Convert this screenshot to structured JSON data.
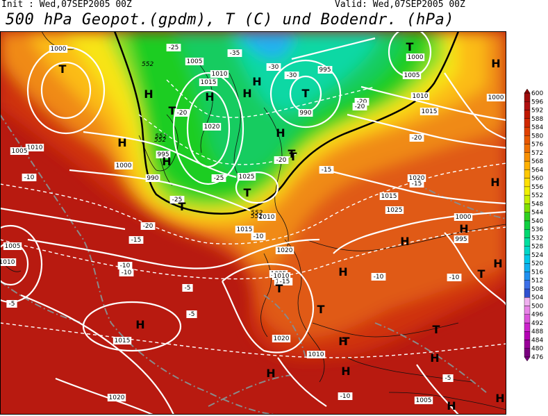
{
  "header": {
    "init_label": "Init : Wed,07SEP2005 00Z",
    "valid_label": "Valid: Wed,07SEP2005 00Z",
    "title": "500 hPa Geopot.(gpdm), T (C) und Bodendr. (hPa)"
  },
  "colorbar": {
    "levels": [
      476,
      480,
      484,
      488,
      492,
      496,
      500,
      504,
      508,
      512,
      516,
      520,
      524,
      528,
      532,
      536,
      540,
      544,
      548,
      552,
      556,
      560,
      564,
      568,
      572,
      576,
      580,
      584,
      588,
      592,
      596,
      600
    ],
    "colors": [
      "#7a0080",
      "#9a009a",
      "#b400b4",
      "#cc22cc",
      "#dd55dd",
      "#e884e8",
      "#f0b0f0",
      "#3050d0",
      "#3c70e8",
      "#2090f0",
      "#10b0f0",
      "#00c8e8",
      "#00d8c8",
      "#00e0a0",
      "#00d870",
      "#10d040",
      "#30d020",
      "#80e000",
      "#c8f000",
      "#f0f000",
      "#ffe000",
      "#ffc800",
      "#ffb000",
      "#f89000",
      "#f07000",
      "#e85800",
      "#e04000",
      "#d02800",
      "#c01800",
      "#b01010",
      "#a00c0c",
      "#880808"
    ]
  },
  "isobar_labels": [
    "1000",
    "1005",
    "1010",
    "1015",
    "1020",
    "1025",
    "990",
    "995",
    "1000",
    "1005",
    "1010",
    "1015",
    "1020",
    "1025",
    "1020",
    "1015",
    "1010",
    "1005",
    "1000",
    "995",
    "990",
    "1010",
    "1015",
    "1020",
    "1025",
    "1010",
    "1015",
    "1020",
    "1010",
    "1005",
    "1000",
    "1000",
    "995",
    "1005",
    "1010",
    "1015",
    "1020"
  ],
  "temp_labels": [
    "-25",
    "-25",
    "-30",
    "-30",
    "-35",
    "-20",
    "-20",
    "-25",
    "-20",
    "-20",
    "-15",
    "-15",
    "-15",
    "-10",
    "-10",
    "-10",
    "-10",
    "-10",
    "-10",
    "-5",
    "-5",
    "-5",
    "-5",
    "-15",
    "-20",
    "-20",
    "-10"
  ],
  "height_labels": [
    "552",
    "552",
    "552",
    "552",
    "552"
  ],
  "pressure_centers": [
    "T",
    "T",
    "T",
    "T",
    "T",
    "T",
    "T",
    "T",
    "T",
    "T",
    "T",
    "T",
    "T",
    "H",
    "H",
    "H",
    "H",
    "H",
    "H",
    "H",
    "H",
    "H",
    "H",
    "H",
    "H",
    "H",
    "H",
    "H",
    "H",
    "H",
    "H",
    "H",
    "H"
  ]
}
